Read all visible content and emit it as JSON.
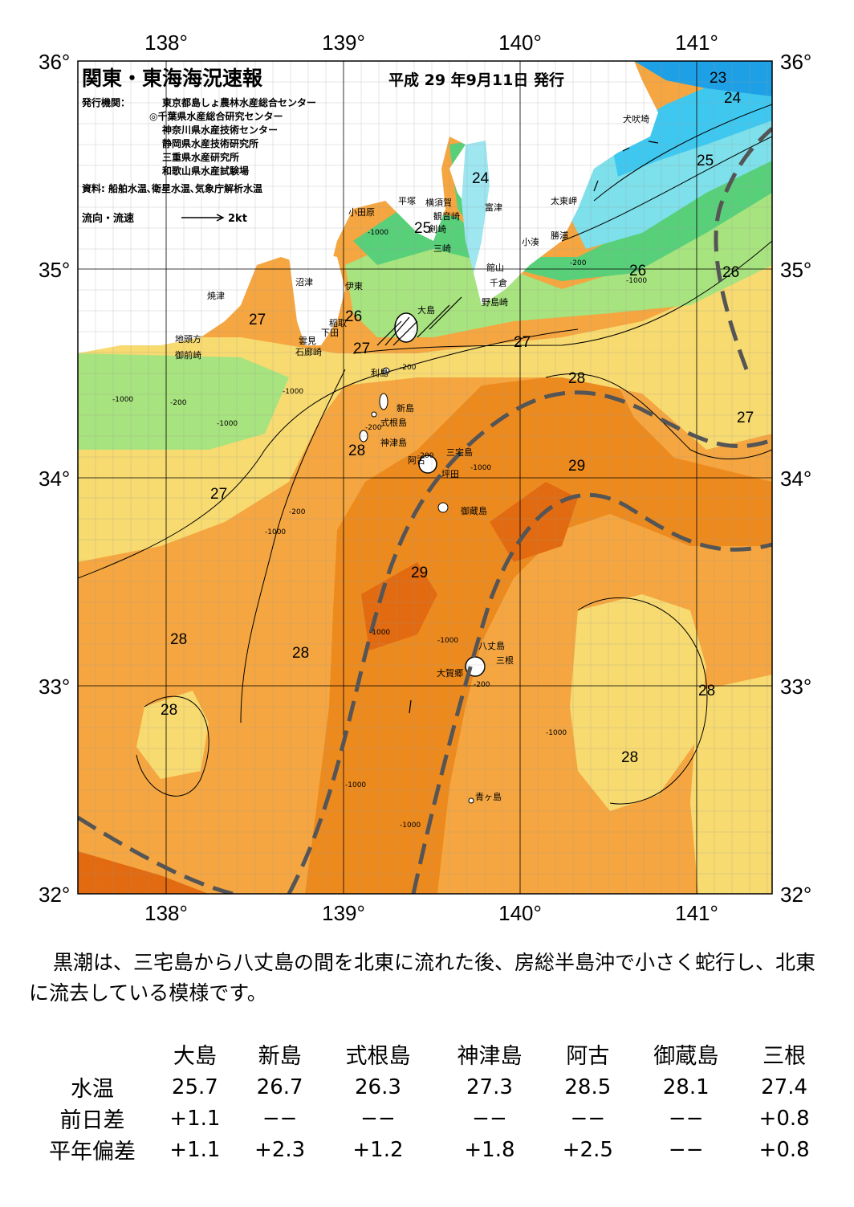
{
  "header": {
    "title": "関東・東海海況速報",
    "date": "平成 29 年9月11日 発行",
    "publisher_label": "発行機関：",
    "publishers": [
      "東京都島しょ農林水産総合センター",
      "◎千葉県水産総合研究センター",
      "神奈川県水産技術センター",
      "静岡県水産技術研究所",
      "三重県水産研究所",
      "和歌山県水産試験場"
    ],
    "source": "資料: 船舶水温､衛星水温､気象庁解析水温",
    "flow_legend": "流向・流速",
    "flow_scale": "2kt"
  },
  "axes": {
    "lon_labels": [
      "138°",
      "139°",
      "140°",
      "141°"
    ],
    "lat_labels": [
      "36°",
      "35°",
      "34°",
      "33°",
      "32°"
    ]
  },
  "isotherm_labels": [
    "23",
    "24",
    "24",
    "25",
    "25",
    "26",
    "26",
    "26",
    "27",
    "27",
    "27",
    "27",
    "27",
    "28",
    "28",
    "28",
    "28",
    "28",
    "28",
    "28",
    "29",
    "29"
  ],
  "depth_labels": [
    "-1000",
    "-200",
    "-1000",
    "-1000",
    "-200",
    "-1000",
    "-200",
    "-1000",
    "-1000",
    "-200",
    "-1000",
    "-200",
    "-1000",
    "-1000",
    "-1000",
    "-1000",
    "-200",
    "-1000",
    "-200"
  ],
  "place_names": [
    "犬吠埼",
    "太東岬",
    "勝浦",
    "小湊",
    "富津",
    "館山",
    "千倉",
    "野島崎",
    "横須賀",
    "観音崎",
    "平塚",
    "小田原",
    "剣崎",
    "三崎",
    "沼津",
    "伊東",
    "焼津",
    "稲取",
    "下田",
    "雲見",
    "石廊崎",
    "地頭方",
    "御前崎",
    "大島",
    "利島",
    "新島",
    "式根島",
    "神津島",
    "三宅島",
    "阿古",
    "坪田",
    "御蔵島",
    "八丈島",
    "三根",
    "大賀郷",
    "青ヶ島"
  ],
  "summary": "黒潮は、三宅島から八丈島の間を北東に流れた後、房総半島沖で小さく蛇行し、北東に流去している模様です。",
  "table": {
    "columns": [
      "大島",
      "新島",
      "式根島",
      "神津島",
      "阿古",
      "御蔵島",
      "三根"
    ],
    "rows": [
      {
        "label": "水温",
        "values": [
          "25.7",
          "26.7",
          "26.3",
          "27.3",
          "28.5",
          "28.1",
          "27.4"
        ]
      },
      {
        "label": "前日差",
        "values": [
          "+1.1",
          "−−",
          "−−",
          "−−",
          "−−",
          "−−",
          "+0.8"
        ]
      },
      {
        "label": "平年偏差",
        "values": [
          "+1.1",
          "+2.3",
          "+1.2",
          "+1.8",
          "+2.5",
          "−−",
          "+0.8"
        ]
      }
    ]
  },
  "colors": {
    "sst_22": "#1ea0e6",
    "sst_23": "#3ec8f0",
    "sst_24": "#7de0ea",
    "sst_25": "#58d07a",
    "sst_26": "#a7e37e",
    "sst_27": "#f7da70",
    "sst_28": "#f5a640",
    "sst_29": "#ed8a1e",
    "sst_30": "#e26a10",
    "land": "#ffffff",
    "kuroshio_axis": "#555555"
  }
}
